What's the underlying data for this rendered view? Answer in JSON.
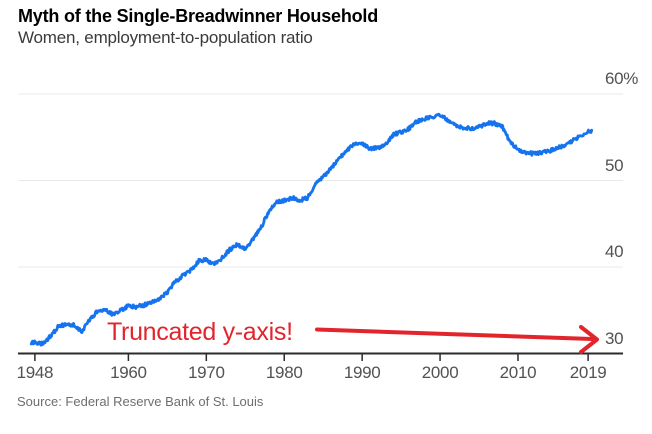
{
  "header": {
    "title": "Myth of the Single-Breadwinner Household",
    "subtitle": "Women, employment-to-population ratio"
  },
  "source": "Source: Federal Reserve Bank of St. Louis",
  "annotation": {
    "text": "Truncated y-axis!"
  },
  "colors": {
    "line": "#1673f0",
    "annotation": "#e2242c",
    "axis": "#2b2b2b",
    "grid": "#e9e9e9",
    "tick_text": "#525252",
    "muted_text": "#6e6e6e"
  },
  "chart_data": {
    "type": "line",
    "title": "Myth of the Single-Breadwinner Household",
    "subtitle": "Women, employment-to-population ratio",
    "xlabel": "",
    "ylabel": "employment-to-population ratio (%)",
    "xlim": [
      1948,
      2020
    ],
    "ylim": [
      30,
      60
    ],
    "y_axis_truncated": true,
    "grid": "horizontal",
    "x_ticks": [
      "1948",
      "1960",
      "1970",
      "1980",
      "1990",
      "2000",
      "2010",
      "2019"
    ],
    "x_tick_years": [
      1948,
      1960,
      1970,
      1980,
      1990,
      2000,
      2010,
      2019
    ],
    "y_ticks": [
      {
        "label": "60%",
        "value": 60
      },
      {
        "label": "50",
        "value": 50
      },
      {
        "label": "40",
        "value": 40
      },
      {
        "label": "30",
        "value": 30
      }
    ],
    "series": [
      {
        "name": "Women, employment-to-population ratio (%)",
        "x": [
          1948,
          1949,
          1950,
          1951,
          1952,
          1953,
          1954,
          1955,
          1956,
          1957,
          1958,
          1959,
          1960,
          1961,
          1962,
          1963,
          1964,
          1965,
          1966,
          1967,
          1968,
          1969,
          1970,
          1971,
          1972,
          1973,
          1974,
          1975,
          1976,
          1977,
          1978,
          1979,
          1980,
          1981,
          1982,
          1983,
          1984,
          1985,
          1986,
          1987,
          1988,
          1989,
          1990,
          1991,
          1992,
          1993,
          1994,
          1995,
          1996,
          1997,
          1998,
          1999,
          2000,
          2001,
          2002,
          2003,
          2004,
          2005,
          2006,
          2007,
          2008,
          2009,
          2010,
          2011,
          2012,
          2013,
          2014,
          2015,
          2016,
          2017,
          2018,
          2019
        ],
        "values": [
          31.3,
          31.1,
          32.0,
          33.1,
          33.4,
          33.3,
          32.5,
          33.8,
          34.9,
          35.1,
          34.5,
          35.0,
          35.5,
          35.4,
          35.6,
          36.0,
          36.3,
          37.1,
          38.3,
          39.0,
          39.6,
          40.7,
          40.8,
          40.4,
          41.0,
          42.0,
          42.6,
          42.0,
          43.2,
          44.5,
          46.4,
          47.5,
          47.7,
          48.0,
          47.7,
          48.0,
          49.5,
          50.4,
          51.4,
          52.5,
          53.4,
          54.3,
          54.3,
          53.7,
          53.8,
          54.1,
          55.3,
          55.6,
          56.0,
          56.8,
          57.1,
          57.4,
          57.5,
          57.0,
          56.3,
          56.1,
          56.0,
          56.2,
          56.6,
          56.6,
          56.2,
          54.4,
          53.6,
          53.2,
          53.1,
          53.2,
          53.4,
          53.7,
          54.1,
          54.6,
          55.1,
          55.7
        ]
      }
    ],
    "annotations": [
      {
        "type": "text",
        "text": "Truncated y-axis!",
        "color": "#e2242c"
      },
      {
        "type": "arrow",
        "color": "#e2242c",
        "points_to": "30 baseline at right edge"
      }
    ]
  }
}
